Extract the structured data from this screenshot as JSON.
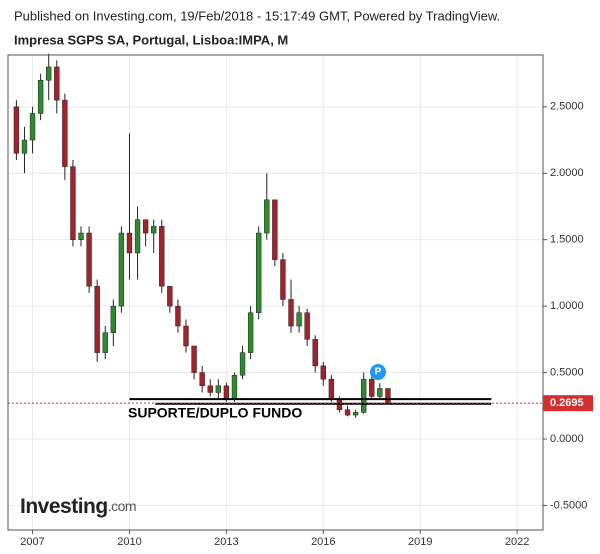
{
  "chart_data": {
    "type": "candlestick",
    "published": "Published on Investing.com, 19/Feb/2018 - 15:17:49 GMT, Powered by TradingView.",
    "title": "Impresa SGPS SA, Portugal, Lisboa:IMPA, M",
    "annotation": "SUPORTE/DUPLO FUNDO",
    "marker": "P",
    "watermark": "Investing",
    "watermark_suffix": ".com",
    "up_color": "#2e8b2e",
    "down_color": "#a3232b",
    "x": [
      2006.5,
      2006.75,
      2007.0,
      2007.25,
      2007.5,
      2007.75,
      2008.0,
      2008.25,
      2008.5,
      2008.75,
      2009.0,
      2009.25,
      2009.5,
      2009.75,
      2010.0,
      2010.25,
      2010.5,
      2010.75,
      2011.0,
      2011.25,
      2011.5,
      2011.75,
      2012.0,
      2012.25,
      2012.5,
      2012.75,
      2013.0,
      2013.25,
      2013.5,
      2013.75,
      2014.0,
      2014.25,
      2014.5,
      2014.75,
      2015.0,
      2015.25,
      2015.5,
      2015.75,
      2016.0,
      2016.25,
      2016.5,
      2016.75,
      2017.0,
      2017.25,
      2017.5,
      2017.75,
      2018.0
    ],
    "open": [
      2.5,
      2.15,
      2.25,
      2.45,
      2.7,
      2.8,
      2.55,
      2.05,
      1.5,
      1.55,
      1.15,
      0.65,
      0.8,
      1.0,
      1.55,
      1.4,
      1.65,
      1.55,
      1.6,
      1.15,
      1.0,
      0.85,
      0.7,
      0.5,
      0.4,
      0.35,
      0.4,
      0.3,
      0.48,
      0.65,
      0.95,
      1.55,
      1.8,
      1.35,
      1.05,
      0.85,
      0.95,
      0.75,
      0.55,
      0.45,
      0.3,
      0.22,
      0.18,
      0.2,
      0.45,
      0.32,
      0.38
    ],
    "high": [
      2.55,
      2.35,
      2.5,
      2.75,
      2.9,
      2.85,
      2.6,
      2.1,
      1.6,
      1.6,
      1.2,
      0.85,
      1.05,
      1.6,
      2.3,
      1.75,
      1.65,
      1.65,
      1.65,
      1.15,
      1.05,
      0.9,
      0.7,
      0.55,
      0.45,
      0.45,
      0.42,
      0.5,
      0.7,
      1.0,
      1.6,
      2.0,
      1.8,
      1.4,
      1.2,
      1.0,
      0.98,
      0.78,
      0.58,
      0.48,
      0.32,
      0.25,
      0.22,
      0.5,
      0.5,
      0.42,
      0.38
    ],
    "low": [
      2.1,
      2.0,
      2.15,
      2.4,
      2.55,
      2.45,
      1.95,
      1.45,
      1.45,
      1.1,
      0.58,
      0.6,
      0.7,
      0.95,
      1.2,
      1.2,
      1.45,
      1.4,
      1.1,
      0.95,
      0.8,
      0.65,
      0.45,
      0.35,
      0.32,
      0.3,
      0.28,
      0.28,
      0.45,
      0.6,
      0.9,
      1.5,
      1.3,
      1.0,
      0.8,
      0.8,
      0.7,
      0.5,
      0.4,
      0.28,
      0.2,
      0.17,
      0.16,
      0.19,
      0.3,
      0.3,
      0.26
    ],
    "close": [
      2.15,
      2.25,
      2.45,
      2.7,
      2.8,
      2.55,
      2.05,
      1.5,
      1.55,
      1.15,
      0.65,
      0.8,
      1.0,
      1.55,
      1.4,
      1.65,
      1.55,
      1.6,
      1.15,
      1.0,
      0.85,
      0.7,
      0.5,
      0.4,
      0.35,
      0.4,
      0.3,
      0.48,
      0.65,
      0.95,
      1.55,
      1.8,
      1.35,
      1.05,
      0.85,
      0.95,
      0.75,
      0.55,
      0.45,
      0.3,
      0.22,
      0.18,
      0.2,
      0.45,
      0.32,
      0.38,
      0.2695
    ],
    "support_lines": [
      {
        "y": 0.3,
        "x": [
          2010.0,
          2021.2
        ]
      },
      {
        "y": 0.265,
        "x": [
          2010.8,
          2021.2
        ]
      }
    ],
    "xlim": [
      2006.24,
      2022.8
    ],
    "xticks": [
      2007,
      2010,
      2013,
      2016,
      2019,
      2022
    ],
    "ylim": [
      -0.685,
      2.89
    ],
    "yticks": [
      {
        "value": 2.5,
        "label": "2.5000"
      },
      {
        "value": 2.0,
        "label": "2.0000"
      },
      {
        "value": 1.5,
        "label": "1.5000"
      },
      {
        "value": 1.0,
        "label": "1.0000"
      },
      {
        "value": 0.5,
        "label": "0.5000"
      },
      {
        "value": 0,
        "label": "0.0000"
      },
      {
        "value": -0.5,
        "label": "-0.5000"
      }
    ],
    "grid": true
  }
}
